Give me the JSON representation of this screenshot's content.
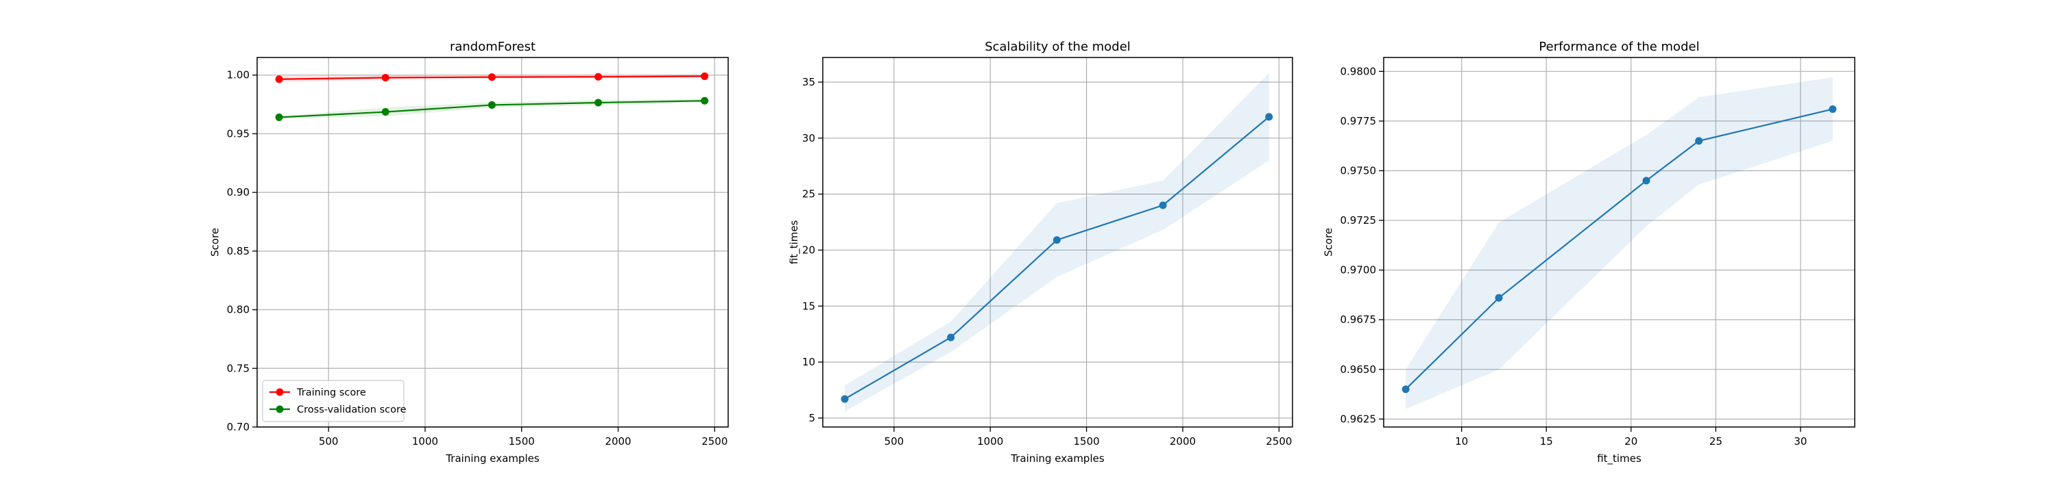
{
  "chart_data": [
    {
      "type": "line",
      "title": "randomForest",
      "xlabel": "Training examples",
      "ylabel": "Score",
      "xlim": [
        130,
        2570
      ],
      "ylim": [
        0.7,
        1.015
      ],
      "grid": true,
      "legend_position": "lower-left",
      "xticks": [
        500,
        1000,
        1500,
        2000,
        2500
      ],
      "xtick_labels": [
        "500",
        "1000",
        "1500",
        "2000",
        "2500"
      ],
      "yticks": [
        0.7,
        0.75,
        0.8,
        0.85,
        0.9,
        0.95,
        1.0
      ],
      "ytick_labels": [
        "0.70",
        "0.75",
        "0.80",
        "0.85",
        "0.90",
        "0.95",
        "1.00"
      ],
      "series": [
        {
          "name": "Training score",
          "color": "#ff0000",
          "x": [
            244,
            795,
            1346,
            1897,
            2448
          ],
          "y": [
            0.9965,
            0.9978,
            0.9983,
            0.9985,
            0.999
          ],
          "band_low": [
            0.994,
            0.996,
            0.9972,
            0.9976,
            0.9982
          ],
          "band_high": [
            0.999,
            0.9996,
            0.9994,
            0.9994,
            0.9998
          ]
        },
        {
          "name": "Cross-validation score",
          "color": "#008000",
          "x": [
            244,
            795,
            1346,
            1897,
            2448
          ],
          "y": [
            0.964,
            0.9686,
            0.9745,
            0.9765,
            0.9781
          ],
          "band_low": [
            0.963,
            0.965,
            0.9722,
            0.9743,
            0.9765
          ],
          "band_high": [
            0.965,
            0.9724,
            0.9768,
            0.9787,
            0.9797
          ]
        }
      ]
    },
    {
      "type": "line",
      "title": "Scalability of the model",
      "xlabel": "Training examples",
      "ylabel": "fit_times",
      "xlim": [
        130,
        2570
      ],
      "ylim": [
        4.2,
        37.2
      ],
      "grid": true,
      "xticks": [
        500,
        1000,
        1500,
        2000,
        2500
      ],
      "xtick_labels": [
        "500",
        "1000",
        "1500",
        "2000",
        "2500"
      ],
      "yticks": [
        5,
        10,
        15,
        20,
        25,
        30,
        35
      ],
      "ytick_labels": [
        "5",
        "10",
        "15",
        "20",
        "25",
        "30",
        "35"
      ],
      "series": [
        {
          "color": "#1f77b4",
          "x": [
            244,
            795,
            1346,
            1897,
            2448
          ],
          "y": [
            6.7,
            12.2,
            20.9,
            24.0,
            31.9
          ],
          "band_low": [
            5.6,
            10.9,
            17.6,
            21.8,
            28.0
          ],
          "band_high": [
            7.9,
            13.6,
            24.2,
            26.2,
            35.8
          ]
        }
      ]
    },
    {
      "type": "line",
      "title": "Performance of the model",
      "xlabel": "fit_times",
      "ylabel": "Score",
      "xlim": [
        5.4,
        33.2
      ],
      "ylim": [
        0.9621,
        0.9807
      ],
      "grid": true,
      "xticks": [
        10,
        15,
        20,
        25,
        30
      ],
      "xtick_labels": [
        "10",
        "15",
        "20",
        "25",
        "30"
      ],
      "yticks": [
        0.9625,
        0.965,
        0.9675,
        0.97,
        0.9725,
        0.975,
        0.9775,
        0.98
      ],
      "ytick_labels": [
        "0.9625",
        "0.9650",
        "0.9675",
        "0.9700",
        "0.9725",
        "0.9750",
        "0.9775",
        "0.9800"
      ],
      "series": [
        {
          "color": "#1f77b4",
          "x": [
            6.7,
            12.2,
            20.9,
            24.0,
            31.9
          ],
          "y": [
            0.964,
            0.9686,
            0.9745,
            0.9765,
            0.9781
          ],
          "band_low": [
            0.963,
            0.965,
            0.9722,
            0.9743,
            0.9765
          ],
          "band_high": [
            0.965,
            0.9724,
            0.9768,
            0.9787,
            0.9797
          ]
        }
      ]
    }
  ]
}
